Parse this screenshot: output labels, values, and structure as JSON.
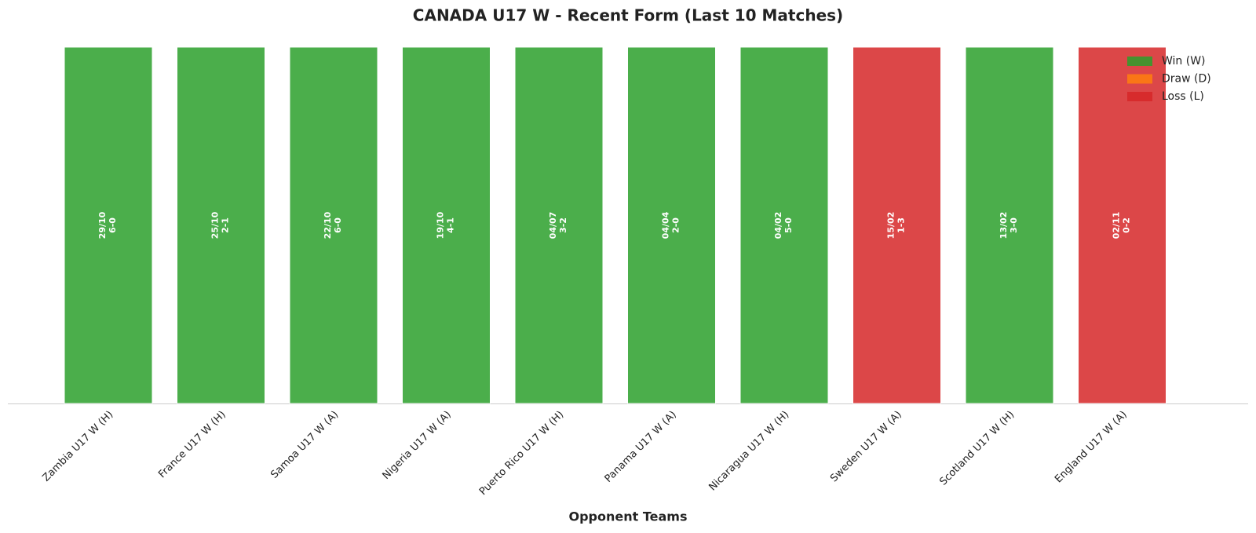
{
  "chart_data": {
    "type": "bar",
    "title": "CANADA U17 W - Recent Form (Last 10 Matches)",
    "x_label": "Opponent Teams",
    "categories": [
      "Zambia U17 W (H)",
      "France U17 W (H)",
      "Samoa U17 W (A)",
      "Nigeria U17 W (A)",
      "Puerto Rico U17 W (H)",
      "Panama U17 W (A)",
      "Nicaragua U17 W (H)",
      "Sweden U17 W (A)",
      "Scotland U17 W (H)",
      "England U17 W (A)"
    ],
    "dates": [
      "29/10",
      "25/10",
      "22/10",
      "19/10",
      "04/07",
      "04/04",
      "04/02",
      "15/02",
      "13/02",
      "02/11"
    ],
    "scores": [
      "6-0",
      "2-1",
      "6-0",
      "4-1",
      "3-2",
      "2-0",
      "5-0",
      "1-3",
      "3-0",
      "0-2"
    ],
    "series": [
      {
        "name": "Win (W)",
        "color": "#2ca02c",
        "values": [
          1,
          1,
          1,
          1,
          1,
          1,
          1,
          null,
          1,
          null
        ]
      },
      {
        "name": "Draw (D)",
        "color": "#ff7f0e",
        "values": [
          null,
          null,
          null,
          null,
          null,
          null,
          null,
          null,
          null,
          null
        ]
      },
      {
        "name": "Loss (L)",
        "color": "#d62728",
        "values": [
          null,
          null,
          null,
          null,
          null,
          null,
          null,
          1,
          null,
          1
        ]
      }
    ],
    "ylim": [
      0,
      1
    ],
    "legend": "upper right",
    "grid": false
  }
}
